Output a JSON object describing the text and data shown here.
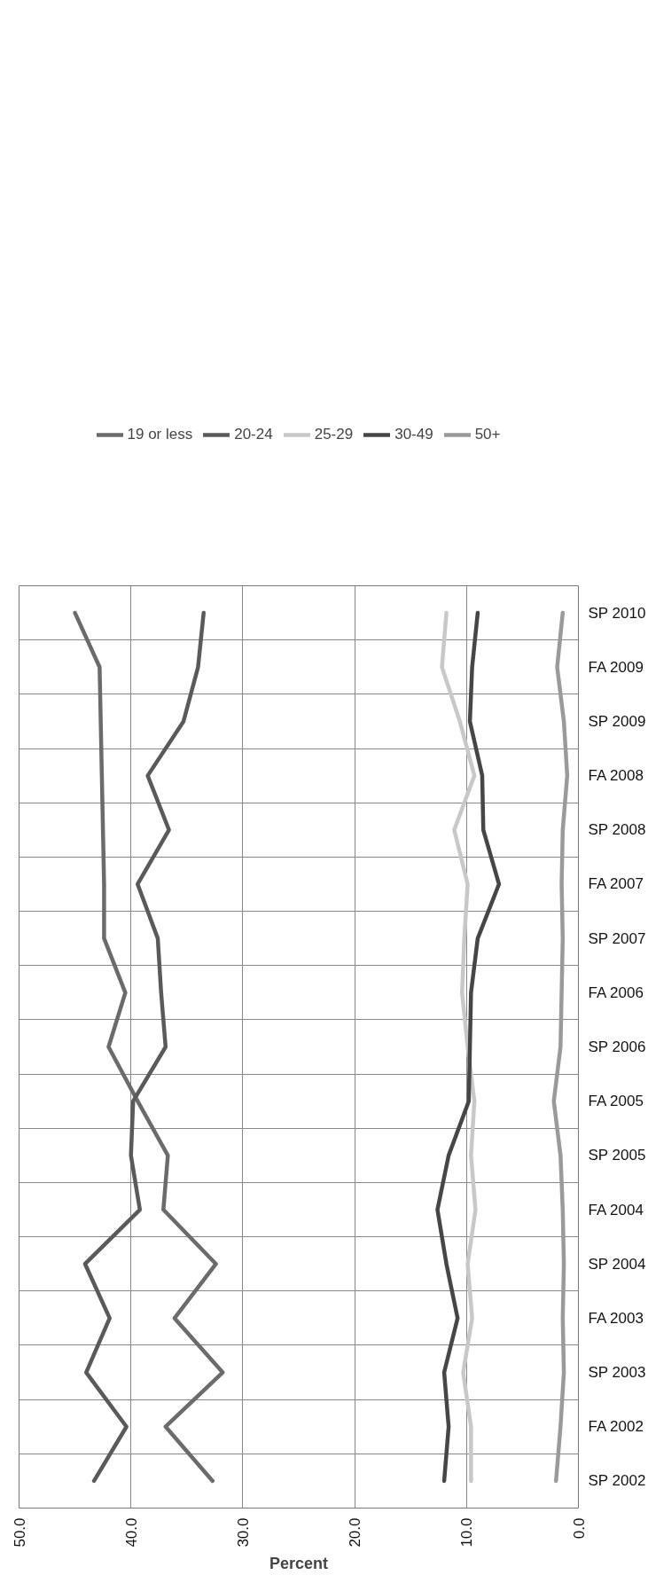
{
  "chart_data": {
    "type": "line",
    "orientation": "horizontal",
    "xlabel": "Percent",
    "categories": [
      "SP 2010",
      "FA 2009",
      "SP 2009",
      "FA 2008",
      "SP 2008",
      "FA 2007",
      "SP 2007",
      "FA 2006",
      "SP 2006",
      "FA 2005",
      "SP 2005",
      "FA 2004",
      "SP 2004",
      "FA 2003",
      "SP 2003",
      "FA 2002",
      "SP 2002"
    ],
    "series": [
      {
        "name": "19 or less",
        "color": "#6b6b6b",
        "values": [
          45.0,
          42.8,
          42.7,
          42.6,
          42.5,
          42.4,
          42.4,
          40.5,
          42.0,
          39.4,
          36.7,
          37.1,
          32.4,
          36.1,
          31.8,
          36.9,
          32.7
        ]
      },
      {
        "name": "20-24",
        "color": "#5a5a5a",
        "values": [
          33.5,
          34.0,
          35.3,
          38.5,
          36.6,
          39.4,
          37.6,
          37.3,
          36.9,
          39.8,
          40.0,
          39.2,
          44.1,
          41.9,
          44.0,
          40.4,
          43.3
        ]
      },
      {
        "name": "25-29",
        "color": "#c8c8c8",
        "values": [
          11.8,
          12.2,
          10.6,
          9.3,
          11.1,
          9.9,
          10.2,
          10.4,
          9.9,
          9.3,
          9.6,
          9.2,
          9.9,
          9.5,
          10.3,
          9.6,
          9.6
        ]
      },
      {
        "name": "30-49",
        "color": "#464646",
        "values": [
          9.0,
          9.5,
          9.7,
          8.6,
          8.5,
          7.1,
          9.0,
          9.6,
          9.7,
          9.8,
          11.6,
          12.6,
          11.8,
          10.8,
          12.0,
          11.6,
          12.0
        ]
      },
      {
        "name": "50+",
        "color": "#9a9a9a",
        "values": [
          1.4,
          1.9,
          1.3,
          1.0,
          1.4,
          1.5,
          1.4,
          1.5,
          1.6,
          2.2,
          1.6,
          1.4,
          1.3,
          1.4,
          1.3,
          1.6,
          2.0
        ]
      }
    ],
    "xlim": [
      50,
      0
    ],
    "xticks": [
      {
        "value": 50,
        "label": "50.0"
      },
      {
        "value": 40,
        "label": "40.0"
      },
      {
        "value": 30,
        "label": "30.0"
      },
      {
        "value": 20,
        "label": "20.0"
      },
      {
        "value": 10,
        "label": "10.0"
      },
      {
        "value": 0,
        "label": "0.0"
      }
    ],
    "grid": true,
    "legend": "top",
    "marker": "none",
    "line_style": "solid"
  }
}
